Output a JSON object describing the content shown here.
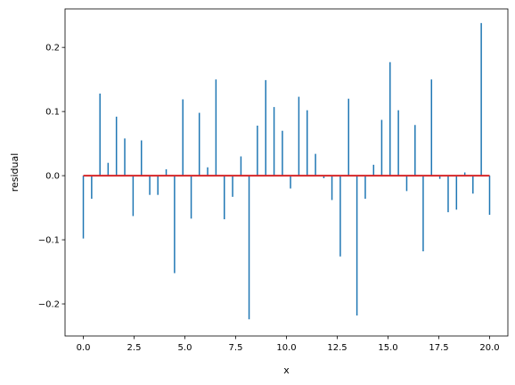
{
  "chart_data": {
    "type": "bar",
    "subtype": "stem",
    "title": "",
    "xlabel": "x",
    "ylabel": "residual",
    "xlim": [
      -0.9,
      20.9
    ],
    "ylim": [
      -0.25,
      0.26
    ],
    "xticks": [
      0.0,
      2.5,
      5.0,
      7.5,
      10.0,
      12.5,
      15.0,
      17.5,
      20.0
    ],
    "xtick_labels": [
      "0.0",
      "2.5",
      "5.0",
      "7.5",
      "10.0",
      "12.5",
      "15.0",
      "17.5",
      "20.0"
    ],
    "yticks": [
      -0.2,
      -0.1,
      0.0,
      0.1,
      0.2
    ],
    "ytick_labels": [
      "−0.2",
      "−0.1",
      "0.0",
      "0.1",
      "0.2"
    ],
    "grid": false,
    "baseline": 0,
    "colors": {
      "stems": "#1f77b4",
      "baseline": "#d62728"
    },
    "x": [
      0.0,
      0.41,
      0.82,
      1.22,
      1.63,
      2.04,
      2.45,
      2.86,
      3.27,
      3.67,
      4.08,
      4.49,
      4.9,
      5.31,
      5.71,
      6.12,
      6.53,
      6.94,
      7.35,
      7.76,
      8.16,
      8.57,
      8.98,
      9.39,
      9.8,
      10.2,
      10.61,
      11.02,
      11.43,
      11.84,
      12.24,
      12.65,
      13.06,
      13.47,
      13.88,
      14.29,
      14.69,
      15.1,
      15.51,
      15.92,
      16.33,
      16.73,
      17.14,
      17.55,
      17.96,
      18.37,
      18.78,
      19.18,
      19.59,
      20.0
    ],
    "values": [
      -0.098,
      -0.036,
      0.128,
      0.02,
      0.092,
      0.058,
      -0.063,
      0.055,
      -0.03,
      -0.03,
      0.01,
      -0.152,
      0.119,
      -0.067,
      0.098,
      0.013,
      0.15,
      -0.068,
      -0.033,
      0.03,
      -0.224,
      0.078,
      0.149,
      0.107,
      0.07,
      -0.02,
      0.123,
      0.102,
      0.034,
      -0.004,
      -0.038,
      -0.126,
      0.12,
      -0.218,
      -0.036,
      0.017,
      0.087,
      0.177,
      0.102,
      -0.024,
      0.079,
      -0.118,
      0.15,
      -0.005,
      -0.057,
      -0.053,
      0.005,
      -0.028,
      0.238,
      -0.061
    ]
  }
}
